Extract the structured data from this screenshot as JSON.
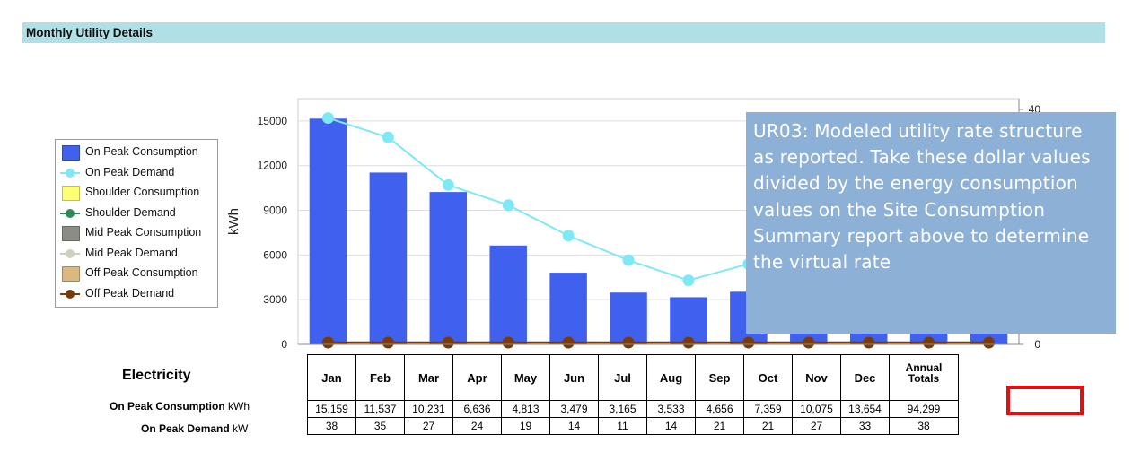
{
  "section": {
    "title": "Monthly Utility Details"
  },
  "legend": [
    {
      "label": "On Peak Consumption",
      "kind": "swatch",
      "color": "#4060ee"
    },
    {
      "label": "On Peak Demand",
      "kind": "line",
      "color": "#7ee8f5"
    },
    {
      "label": "Shoulder Consumption",
      "kind": "swatch",
      "color": "#ffff77"
    },
    {
      "label": "Shoulder Demand",
      "kind": "line",
      "color": "#2e8b57"
    },
    {
      "label": "Mid Peak Consumption",
      "kind": "swatch",
      "color": "#8c8c84"
    },
    {
      "label": "Mid Peak Demand",
      "kind": "line",
      "color": "#cfcfc0"
    },
    {
      "label": "Off Peak Consumption",
      "kind": "swatch",
      "color": "#dbb880"
    },
    {
      "label": "Off Peak Demand",
      "kind": "line",
      "color": "#7a3b0a"
    }
  ],
  "chart_data": {
    "type": "bar",
    "categories": [
      "Jan",
      "Feb",
      "Mar",
      "Apr",
      "May",
      "Jun",
      "Jul",
      "Aug",
      "Sep",
      "Oct",
      "Nov",
      "Dec"
    ],
    "ylabel": "kWh",
    "ylim": [
      0,
      16500
    ],
    "yticks": [
      "0",
      "3000",
      "6000",
      "9000",
      "12000",
      "15000"
    ],
    "y2ticks": [
      "0",
      "40"
    ],
    "y2lim": [
      0,
      40
    ],
    "series": [
      {
        "name": "On Peak Consumption",
        "type": "bar",
        "color": "#4060ee",
        "values": [
          15159,
          11537,
          10231,
          6636,
          4813,
          3479,
          3165,
          3533,
          4656,
          7359,
          10075,
          13654
        ]
      },
      {
        "name": "On Peak Demand",
        "type": "line",
        "color": "#7ee8f5",
        "values": [
          15200,
          13900,
          10700,
          9350,
          7300,
          5650,
          4300,
          5400,
          6400,
          6400,
          8400,
          12000
        ]
      },
      {
        "name": "Off Peak Demand",
        "type": "line",
        "color": "#7a3b0a",
        "values": [
          0,
          0,
          0,
          0,
          0,
          0,
          0,
          0,
          0,
          0,
          0,
          0
        ]
      }
    ]
  },
  "callout": {
    "text": "UR03: Modeled utility rate structure as reported.  Take these dollar values divided by the energy consumption values on the Site Consumption Summary report above to determine the virtual rate"
  },
  "table": {
    "title": "Electricity",
    "headers": [
      "Jan",
      "Feb",
      "Mar",
      "Apr",
      "May",
      "Jun",
      "Jul",
      "Aug",
      "Sep",
      "Oct",
      "Nov",
      "Dec"
    ],
    "totals_header": "Annual Totals",
    "rows": [
      {
        "label": "On Peak Consumption",
        "unit": "kWh",
        "values": [
          "15,159",
          "11,537",
          "10,231",
          "6,636",
          "4,813",
          "3,479",
          "3,165",
          "3,533",
          "4,656",
          "7,359",
          "10,075",
          "13,654"
        ],
        "total": "94,299"
      },
      {
        "label": "On Peak Demand",
        "unit": "kW",
        "values": [
          "38",
          "35",
          "27",
          "24",
          "19",
          "14",
          "11",
          "14",
          "21",
          "21",
          "27",
          "33"
        ],
        "total": "38"
      }
    ]
  }
}
